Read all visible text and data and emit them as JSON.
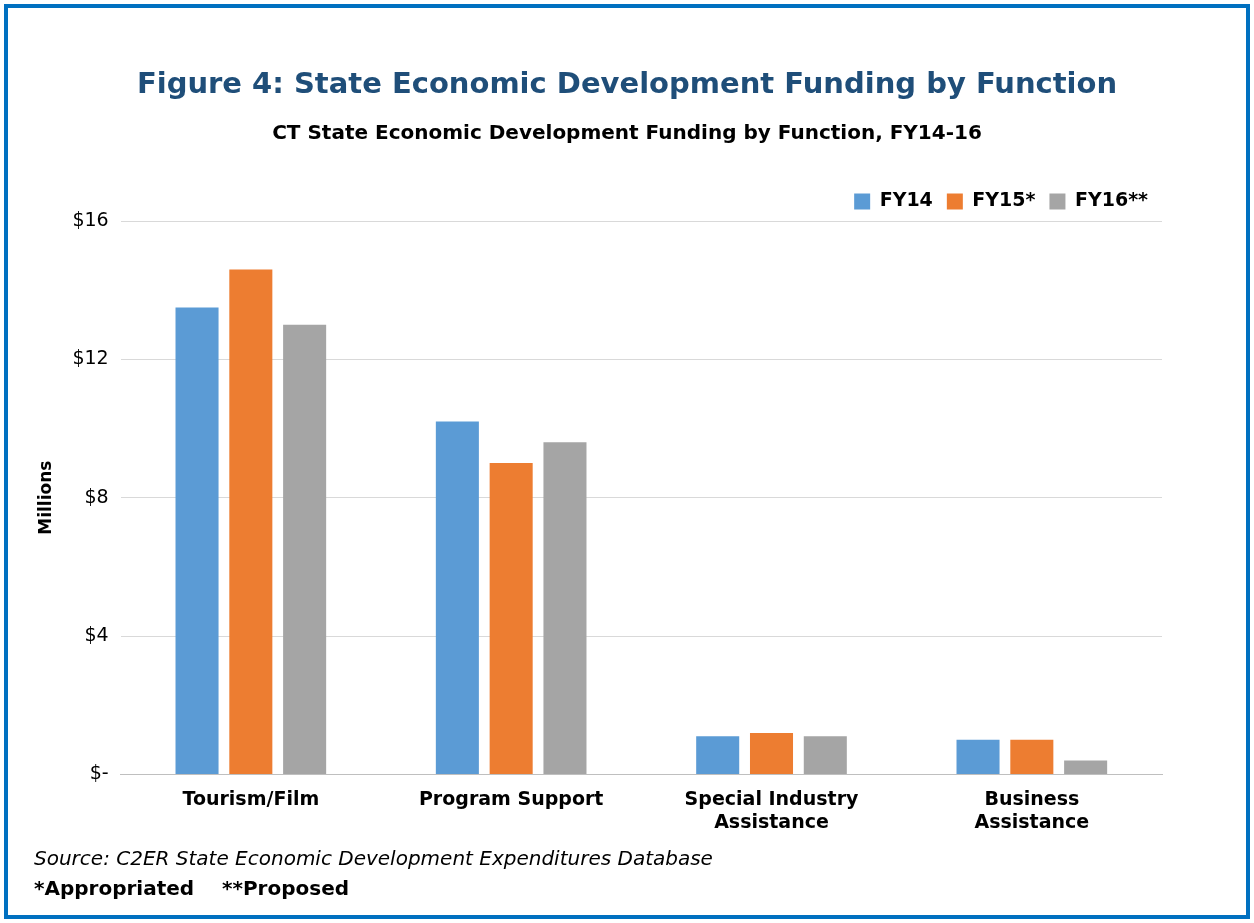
{
  "chart_data": {
    "type": "bar",
    "title": "Figure 4: State Economic Development Funding by Function",
    "subtitle": "CT State Economic Development Funding by Function, FY14-16",
    "ylabel": "Millions",
    "categories": [
      "Tourism/Film",
      "Program Support",
      "Special Industry Assistance",
      "Business Assistance"
    ],
    "series": [
      {
        "name": "FY14",
        "color": "#5b9bd5",
        "values": [
          13.5,
          10.2,
          1.1,
          1.0
        ]
      },
      {
        "name": "FY15*",
        "color": "#ed7d31",
        "values": [
          14.6,
          9.0,
          1.2,
          1.0
        ]
      },
      {
        "name": "FY16**",
        "color": "#a5a5a5",
        "values": [
          13.0,
          9.6,
          1.1,
          0.4
        ]
      }
    ],
    "ylim": [
      0,
      16
    ],
    "yticks": [
      {
        "value": 0,
        "label": "$-"
      },
      {
        "value": 4,
        "label": "$4"
      },
      {
        "value": 8,
        "label": "$8"
      },
      {
        "value": 12,
        "label": "$12"
      },
      {
        "value": 16,
        "label": "$16"
      }
    ],
    "grid": "y",
    "legend": "top right",
    "annotations": [
      "Source: C2ER State Economic Development Expenditures Database",
      "*Appropriated    **Proposed"
    ]
  }
}
